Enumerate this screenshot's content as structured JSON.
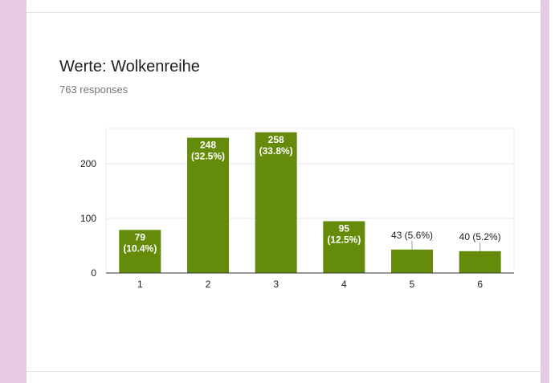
{
  "card": {
    "title": "Werte: Wolkenreihe",
    "responses": "763 responses"
  },
  "chart_data": {
    "type": "bar",
    "categories": [
      "1",
      "2",
      "3",
      "4",
      "5",
      "6"
    ],
    "values": [
      79,
      248,
      258,
      95,
      43,
      40
    ],
    "labels": [
      "79 (10.4%)",
      "248 (32.5%)",
      "258 (33.8%)",
      "95 (12.5%)",
      "43 (5.6%)",
      "40 (5.2%)"
    ],
    "label_lines": [
      [
        "79",
        "(10.4%)"
      ],
      [
        "248",
        "(32.5%)"
      ],
      [
        "258",
        "(33.8%)"
      ],
      [
        "95",
        "(12.5%)"
      ],
      [
        "43 (5.6%)"
      ],
      [
        "40 (5.2%)"
      ]
    ],
    "label_inside": [
      true,
      true,
      true,
      true,
      false,
      false
    ],
    "yticks": [
      0,
      100,
      200
    ],
    "ylim": [
      0,
      265
    ],
    "grid": true,
    "bar_color": "#648c0a"
  }
}
